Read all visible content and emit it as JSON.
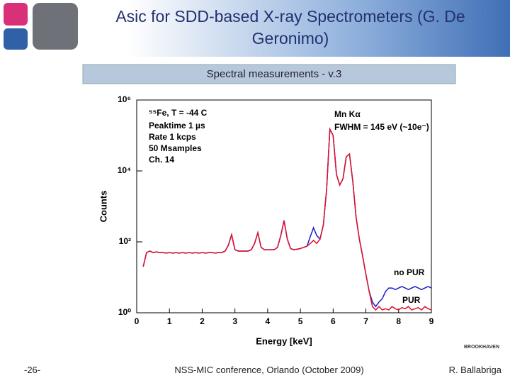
{
  "slide": {
    "title": "Asic for SDD-based X-ray Spectrometers (G. De Geronimo)",
    "page_number": "-26-",
    "footer": "NSS-MIC conference, Orlando (October 2009)",
    "author": "R. Ballabriga",
    "logo_text": "BROOKHAVEN"
  },
  "chart_data": {
    "type": "line",
    "title": "Spectral measurements - v.3",
    "x_label": "Energy [keV]",
    "y_label": "Counts",
    "annotations": [
      "⁵⁵Fe, T = -44 C",
      "Peaktime 1 µs",
      "Rate 1 kcps",
      "50 Msamples",
      "Ch. 14",
      "Mn Kα",
      "FWHM = 145 eV (~10e⁻)"
    ],
    "xlim": [
      0,
      9
    ],
    "xticks": [
      0,
      1,
      2,
      3,
      4,
      5,
      6,
      7,
      8,
      9
    ],
    "ylim": [
      1,
      1000000
    ],
    "log_scale": true,
    "yticks": [
      {
        "value": 1,
        "label": "10⁰"
      },
      {
        "value": 100,
        "label": "10²"
      },
      {
        "value": 10000,
        "label": "10⁴"
      },
      {
        "value": 1000000,
        "label": "10⁶"
      }
    ],
    "x": [
      0.2,
      0.3,
      0.4,
      0.5,
      0.6,
      0.7,
      0.8,
      0.9,
      1.0,
      1.1,
      1.2,
      1.3,
      1.4,
      1.5,
      1.6,
      1.7,
      1.8,
      1.9,
      2.0,
      2.1,
      2.2,
      2.3,
      2.4,
      2.5,
      2.6,
      2.7,
      2.8,
      2.9,
      3.0,
      3.1,
      3.2,
      3.3,
      3.4,
      3.5,
      3.6,
      3.7,
      3.8,
      3.9,
      4.0,
      4.1,
      4.2,
      4.3,
      4.4,
      4.5,
      4.6,
      4.7,
      4.8,
      4.9,
      5.0,
      5.1,
      5.2,
      5.3,
      5.4,
      5.5,
      5.6,
      5.7,
      5.8,
      5.9,
      6.0,
      6.1,
      6.2,
      6.3,
      6.4,
      6.5,
      6.6,
      6.7,
      6.8,
      6.9,
      7.0,
      7.1,
      7.2,
      7.3,
      7.4,
      7.5,
      7.6,
      7.7,
      7.8,
      7.9,
      8.0,
      8.1,
      8.2,
      8.3,
      8.4,
      8.5,
      8.6,
      8.7,
      8.8,
      8.9,
      9.0
    ],
    "series": [
      {
        "name": "no PUR",
        "color": "#1a1ad0",
        "values": [
          20,
          50,
          55,
          50,
          52,
          50,
          50,
          48,
          50,
          48,
          50,
          48,
          50,
          48,
          50,
          48,
          50,
          48,
          50,
          48,
          50,
          50,
          48,
          50,
          50,
          55,
          80,
          160,
          60,
          55,
          55,
          55,
          55,
          60,
          90,
          180,
          70,
          60,
          60,
          60,
          60,
          70,
          150,
          400,
          120,
          65,
          60,
          62,
          65,
          70,
          75,
          140,
          250,
          150,
          120,
          300,
          3000,
          150000,
          100000,
          8000,
          4000,
          6000,
          25000,
          30000,
          5000,
          500,
          120,
          40,
          12,
          4,
          2,
          1.5,
          2,
          2.5,
          4,
          5,
          5,
          4.5,
          5,
          5.5,
          5,
          4.5,
          5,
          5.5,
          5,
          4.5,
          5,
          5.5,
          5
        ]
      },
      {
        "name": "PUR",
        "color": "#e0102a",
        "values": [
          20,
          50,
          55,
          50,
          52,
          50,
          50,
          48,
          50,
          48,
          50,
          48,
          50,
          48,
          50,
          48,
          50,
          48,
          50,
          48,
          50,
          50,
          48,
          50,
          50,
          55,
          80,
          160,
          60,
          55,
          55,
          55,
          55,
          60,
          90,
          180,
          70,
          60,
          60,
          60,
          60,
          70,
          150,
          400,
          120,
          65,
          60,
          62,
          65,
          70,
          75,
          90,
          110,
          90,
          120,
          300,
          3000,
          150000,
          100000,
          8000,
          4000,
          6000,
          25000,
          30000,
          5000,
          500,
          120,
          40,
          12,
          4,
          1.5,
          1.2,
          1.5,
          1.2,
          1.3,
          1.2,
          1.5,
          1.3,
          1.2,
          1.4,
          1.3,
          1.5,
          1.2,
          1.3,
          1.4,
          1.2,
          1.5,
          1.3,
          1.2
        ]
      }
    ]
  }
}
